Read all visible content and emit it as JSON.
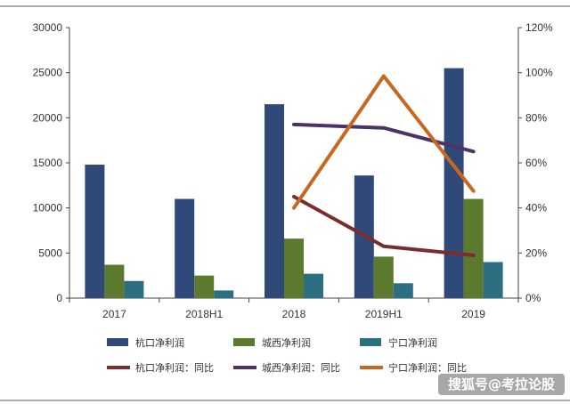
{
  "chart_data": {
    "type": "bar",
    "categories": [
      "2017",
      "2018H1",
      "2018",
      "2019H1",
      "2019"
    ],
    "y_left": {
      "ylim": [
        0,
        30000
      ],
      "ticks": [
        "0",
        "5000",
        "10000",
        "15000",
        "20000",
        "25000",
        "30000"
      ]
    },
    "y_right": {
      "ylim": [
        0,
        1.2
      ],
      "ticks": [
        "0%",
        "20%",
        "40%",
        "60%",
        "80%",
        "100%",
        "120%"
      ]
    },
    "bar_series": [
      {
        "name": "杭口净利润",
        "color": "#2f4a78",
        "values": [
          14800,
          11000,
          21500,
          13600,
          25500
        ]
      },
      {
        "name": "城西净利润",
        "color": "#5c7a2e",
        "values": [
          3700,
          2500,
          6600,
          4600,
          11000
        ]
      },
      {
        "name": "宁口净利润",
        "color": "#2c6f80",
        "values": [
          1900,
          850,
          2700,
          1650,
          4000
        ]
      }
    ],
    "line_series": [
      {
        "name": "杭口净利润：同比",
        "color": "#7b2c2c",
        "points": [
          [
            "2018",
            0.45
          ],
          [
            "2019H1",
            0.23
          ],
          [
            "2019",
            0.19
          ]
        ]
      },
      {
        "name": "城西净利润：同比",
        "color": "#4b3366",
        "points": [
          [
            "2018",
            0.77
          ],
          [
            "2019H1",
            0.755
          ],
          [
            "2019",
            0.65
          ]
        ]
      },
      {
        "name": "宁口净利润：同比",
        "color": "#c8671e",
        "points": [
          [
            "2018",
            0.4
          ],
          [
            "2019H1",
            0.985
          ],
          [
            "2019",
            0.475
          ]
        ]
      }
    ],
    "grid": false,
    "legend_position": "bottom"
  },
  "watermark": "搜狐号@考拉论股"
}
